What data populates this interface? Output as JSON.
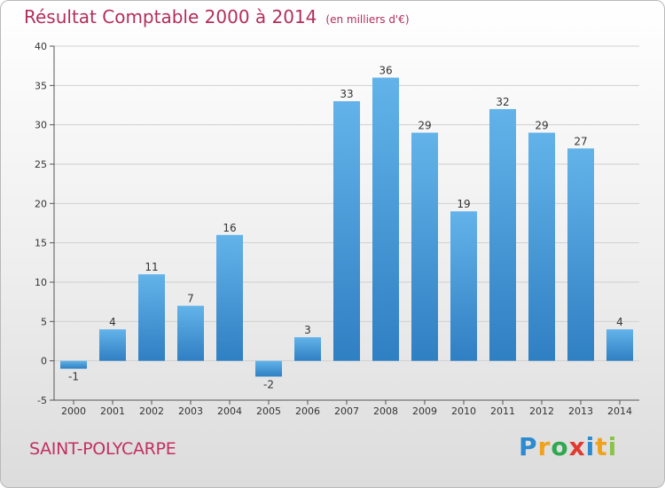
{
  "title": "Résultat Comptable 2000 à 2014",
  "unit": "(en milliers d'€)",
  "commune": "SAINT-POLYCARPE",
  "logo": {
    "p": "P",
    "r": "r",
    "o": "o",
    "x": "x",
    "i1": "i",
    "t": "t",
    "i2": "i"
  },
  "colors": {
    "bar_top": "#63b3ea",
    "bar_bottom": "#2f7fc3",
    "title": "#b22f5a",
    "grid": "#d0d0d0"
  },
  "chart_data": {
    "type": "bar",
    "title": "Résultat Comptable 2000 à 2014",
    "ylabel": "(en milliers d'€)",
    "xlabel": "",
    "categories": [
      "2000",
      "2001",
      "2002",
      "2003",
      "2004",
      "2005",
      "2006",
      "2007",
      "2008",
      "2009",
      "2010",
      "2011",
      "2012",
      "2013",
      "2014"
    ],
    "values": [
      -1,
      4,
      11,
      7,
      16,
      -2,
      3,
      33,
      36,
      29,
      19,
      32,
      29,
      27,
      4
    ],
    "value_labels": [
      "-1",
      "4",
      "11",
      "7",
      "16",
      "-2",
      "3",
      "33",
      "36",
      "29",
      "19",
      "32",
      "29",
      "27",
      "4"
    ],
    "ylim": [
      -5,
      40
    ],
    "yticks": [
      -5,
      0,
      5,
      10,
      15,
      20,
      25,
      30,
      35,
      40
    ],
    "grid": true
  }
}
